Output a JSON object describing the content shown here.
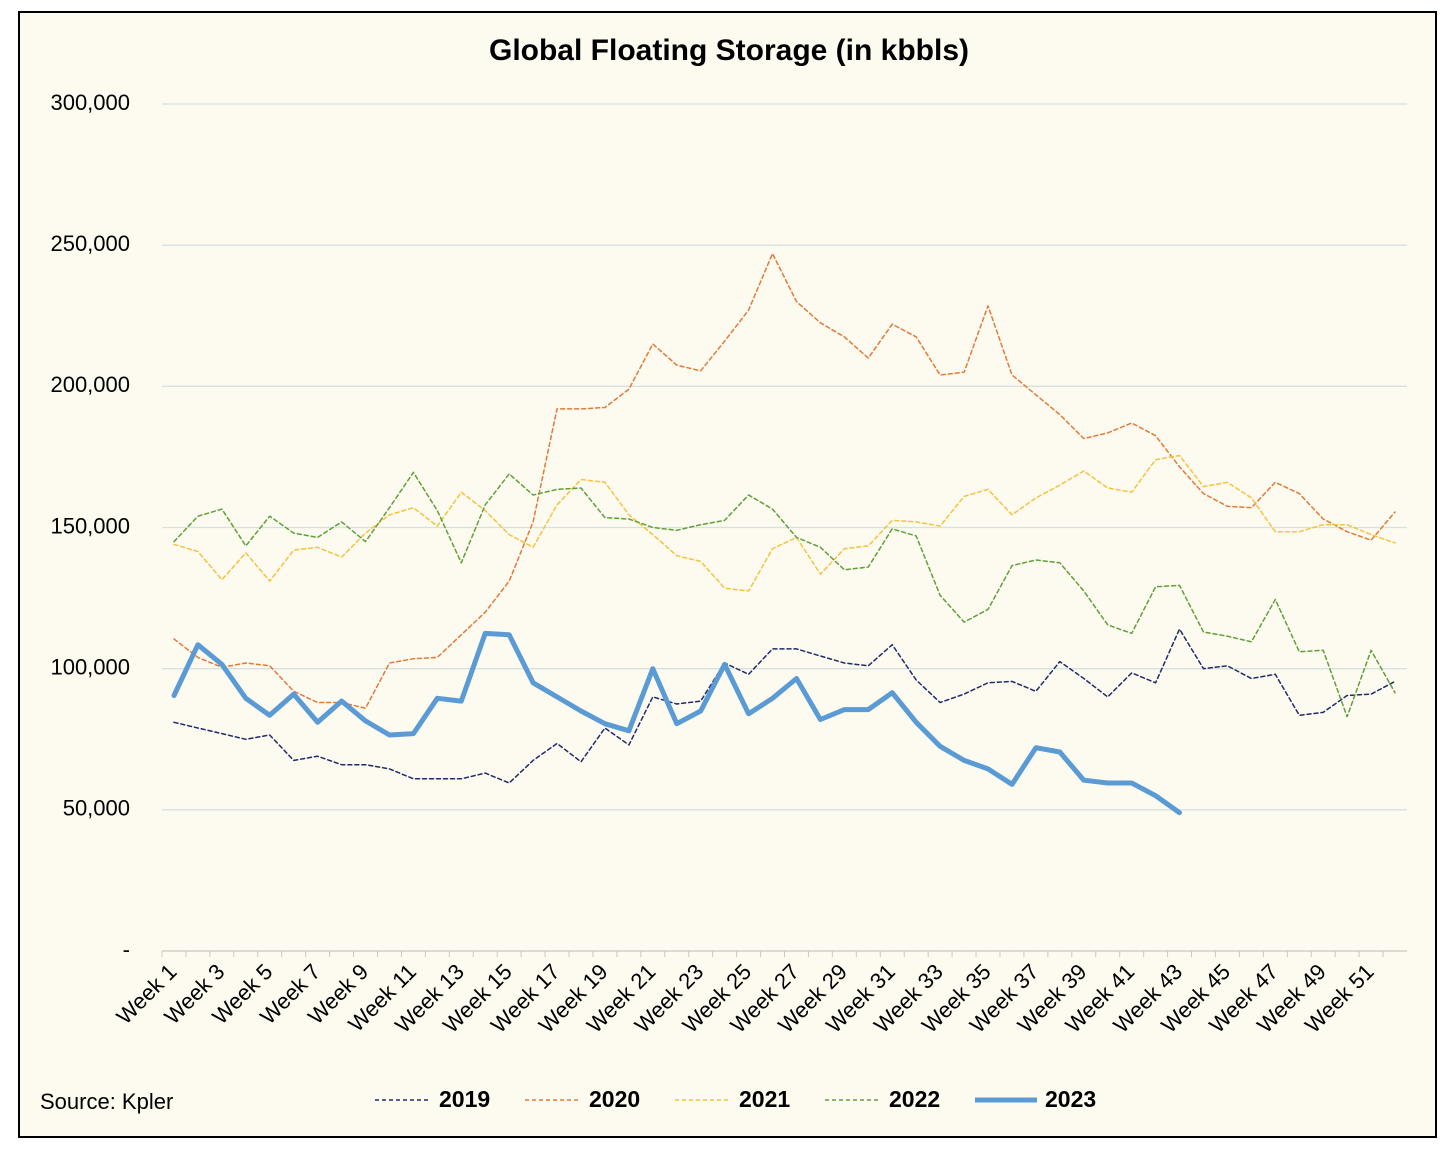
{
  "chart_data": {
    "type": "line",
    "title": "Global Floating Storage (in kbbls)",
    "source": "Source: Kpler",
    "categories": [
      "Week 1",
      null,
      "Week 3",
      null,
      "Week 5",
      null,
      "Week 7",
      null,
      "Week 9",
      null,
      "Week 11",
      null,
      "Week 13",
      null,
      "Week 15",
      null,
      "Week 17",
      null,
      "Week 19",
      null,
      "Week 21",
      null,
      "Week 23",
      null,
      "Week 25",
      null,
      "Week 27",
      null,
      "Week 29",
      null,
      "Week 31",
      null,
      "Week 33",
      null,
      "Week 35",
      null,
      "Week 37",
      null,
      "Week 39",
      null,
      "Week 41",
      null,
      "Week 43",
      null,
      "Week 45",
      null,
      "Week 47",
      null,
      "Week 49",
      null,
      "Week 51",
      null
    ],
    "ylim": [
      0,
      300000
    ],
    "yticks": [
      {
        "value": 0,
        "label": "-"
      },
      {
        "value": 50000,
        "label": "50,000"
      },
      {
        "value": 100000,
        "label": "100,000"
      },
      {
        "value": 150000,
        "label": "150,000"
      },
      {
        "value": 200000,
        "label": "200,000"
      },
      {
        "value": 250000,
        "label": "250,000"
      },
      {
        "value": 300000,
        "label": "300,000"
      }
    ],
    "grid": true,
    "legend": "bottom",
    "series": [
      {
        "name": "2019",
        "color": "#1f2a6b",
        "line_style": "dashed",
        "values": [
          81000,
          79000,
          77000,
          75000,
          76500,
          67500,
          69000,
          66000,
          66000,
          64500,
          61000,
          61000,
          61000,
          63000,
          59500,
          67500,
          73500,
          67000,
          79000,
          73000,
          90000,
          87500,
          88500,
          102000,
          98000,
          107000,
          107000,
          104500,
          102000,
          101000,
          108500,
          96000,
          88000,
          91000,
          95000,
          95500,
          92000,
          102500,
          96500,
          90000,
          98500,
          95000,
          114000,
          100000,
          101000,
          96500,
          98000,
          83500,
          84500,
          90500,
          91000,
          95500
        ]
      },
      {
        "name": "2020",
        "color": "#e07b39",
        "line_style": "dashed",
        "values": [
          110500,
          104000,
          100500,
          102000,
          101000,
          92000,
          88000,
          88000,
          86000,
          102000,
          103500,
          104000,
          112000,
          120000,
          131000,
          152000,
          192000,
          192000,
          192500,
          199000,
          215000,
          207500,
          205500,
          216000,
          227000,
          247000,
          230000,
          222500,
          217500,
          210000,
          222000,
          217500,
          204000,
          205000,
          228500,
          204000,
          197000,
          190000,
          181500,
          183500,
          187000,
          182500,
          171500,
          162000,
          157500,
          157000,
          166000,
          162000,
          153000,
          148500,
          145500,
          155500
        ]
      },
      {
        "name": "2021",
        "color": "#f5c242",
        "line_style": "dashed",
        "values": [
          144000,
          141500,
          131500,
          141000,
          131000,
          142000,
          143000,
          139500,
          148000,
          154500,
          157000,
          150500,
          162500,
          156000,
          147500,
          143000,
          158000,
          167000,
          166000,
          154500,
          147500,
          140000,
          138000,
          128500,
          127500,
          142500,
          146500,
          133500,
          142500,
          143500,
          152500,
          152000,
          150500,
          161000,
          163500,
          154500,
          160500,
          165000,
          170000,
          164000,
          162500,
          174000,
          175500,
          164500,
          166000,
          160500,
          148500,
          148500,
          151000,
          151000,
          147500,
          144500
        ]
      },
      {
        "name": "2022",
        "color": "#5fa03a",
        "line_style": "dashed",
        "values": [
          145000,
          154000,
          156500,
          143500,
          154000,
          148000,
          146500,
          152000,
          145000,
          157000,
          169500,
          156000,
          137500,
          158000,
          169000,
          161500,
          163500,
          164000,
          153500,
          153000,
          150000,
          149000,
          151000,
          152500,
          161500,
          156500,
          146500,
          143000,
          135000,
          136000,
          149500,
          147000,
          126000,
          116500,
          121000,
          136500,
          138500,
          137500,
          127500,
          115500,
          112500,
          129000,
          129500,
          113000,
          111500,
          109500,
          124500,
          106000,
          106500,
          83000,
          106500,
          91500
        ]
      },
      {
        "name": "2023",
        "color": "#5b9bd5",
        "line_style": "solid",
        "values": [
          90500,
          108500,
          101500,
          89500,
          83500,
          91000,
          81000,
          88500,
          81500,
          76500,
          77000,
          89500,
          88500,
          112500,
          112000,
          95000,
          90000,
          85000,
          80500,
          78000,
          100000,
          80500,
          85000,
          101500,
          84000,
          89500,
          96500,
          82000,
          85500,
          85500,
          91500,
          81000,
          72500,
          67500,
          64500,
          59000,
          72000,
          70500,
          60500,
          59500,
          59500,
          55000,
          49000,
          null,
          null,
          null,
          null,
          null,
          null,
          null,
          null,
          null
        ]
      }
    ]
  }
}
